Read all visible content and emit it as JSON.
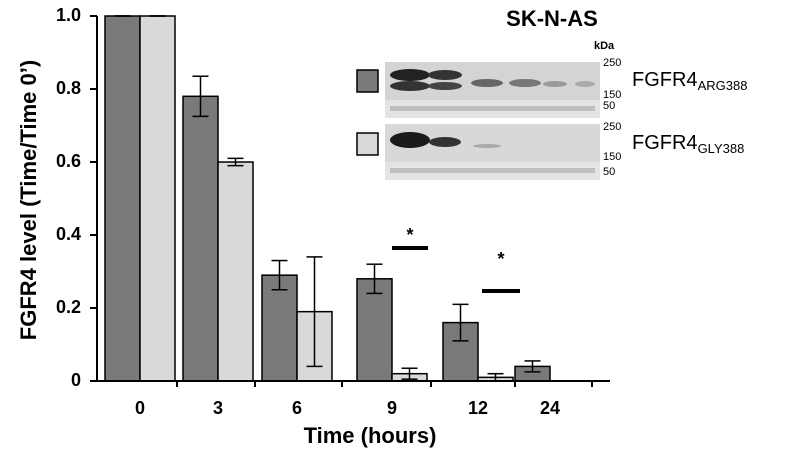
{
  "chart_data": {
    "type": "bar",
    "x_label": "Time (hours)",
    "y_label": "FGFR4 level (Time/Time 0’)",
    "categories": [
      "0",
      "3",
      "6",
      "9",
      "12",
      "24"
    ],
    "series": [
      {
        "name": "FGFR4",
        "name_subscript": "ARG388",
        "color": "#7a7a7a",
        "values": [
          1.0,
          0.78,
          0.29,
          0.28,
          0.16,
          0.04
        ],
        "errors": [
          0,
          0.055,
          0.04,
          0.04,
          0.05,
          0.015
        ]
      },
      {
        "name": "FGFR4",
        "name_subscript": "GLY388",
        "color": "#d9d9d9",
        "values": [
          1.0,
          0.6,
          0.19,
          0.02,
          0.01,
          null
        ],
        "errors": [
          0,
          0.01,
          0.15,
          0.015,
          0.01,
          null
        ]
      }
    ],
    "ylim": [
      0,
      1.0
    ],
    "yticks": [
      0,
      0.2,
      0.4,
      0.6,
      0.8,
      {
        "value": 1.0,
        "label": "1.0"
      }
    ],
    "annotations": [
      "*",
      "*"
    ],
    "inset": {
      "title": "SK-N-AS",
      "unit": "kDa",
      "markers": [
        "250",
        "150",
        "50"
      ]
    }
  }
}
